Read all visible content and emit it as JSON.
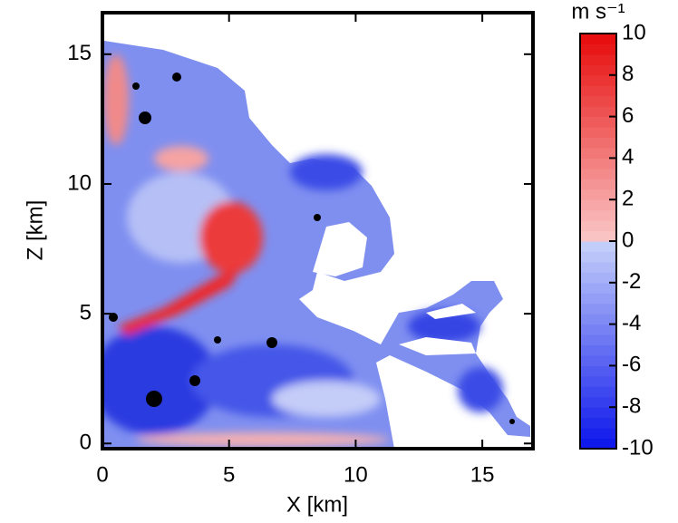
{
  "chart_data": {
    "type": "heatmap",
    "xlabel": "X [km]",
    "ylabel": "Z [km]",
    "xlim": [
      0,
      17
    ],
    "xticks": [
      0,
      5,
      10,
      15
    ],
    "ylim": [
      -0.2,
      16.6
    ],
    "yticks": [
      0,
      5,
      10,
      15
    ],
    "colorbar": {
      "label": "m s⁻¹",
      "lim": [
        -10,
        10
      ],
      "ticks": [
        -10,
        -8,
        -6,
        -4,
        -2,
        0,
        2,
        4,
        6,
        8,
        10
      ]
    }
  }
}
